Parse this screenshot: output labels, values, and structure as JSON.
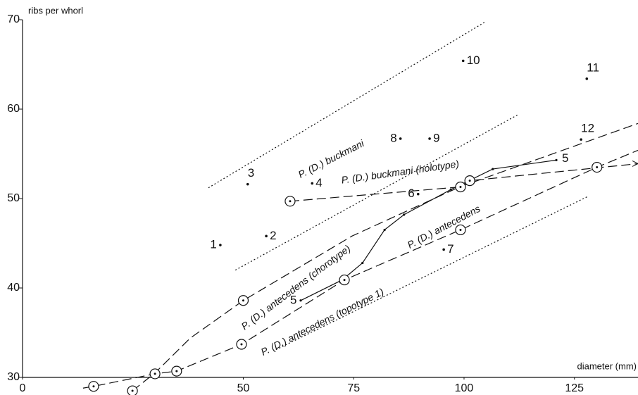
{
  "chart_data": {
    "type": "scatter",
    "xlabel": "diameter (mm)",
    "ylabel": "ribs per whorl",
    "xlim": [
      0,
      139.4
    ],
    "ylim": [
      30,
      70
    ],
    "xticks": [
      0,
      50,
      75,
      100,
      125
    ],
    "yticks": [
      30,
      40,
      50,
      60,
      70
    ],
    "color": "#111111",
    "points": {
      "labels": [
        "1",
        "2",
        "3",
        "4",
        "6",
        "7",
        "8",
        "9",
        "10",
        "11",
        "12"
      ],
      "x": [
        44.8,
        55.2,
        51.0,
        65.6,
        89.6,
        95.4,
        85.6,
        92.2,
        99.8,
        127.8,
        126.5
      ],
      "y": [
        44.8,
        45.8,
        51.6,
        51.7,
        50.5,
        44.3,
        56.7,
        56.7,
        65.4,
        63.4,
        56.6
      ]
    },
    "series": [
      {
        "name": "5",
        "style": "solid",
        "x": [
          63.0,
          72.4,
          77.0,
          82.0,
          86.4,
          97.0,
          106.5,
          120.9
        ],
        "y": [
          38.6,
          40.9,
          42.8,
          46.5,
          48.2,
          51.0,
          53.3,
          54.3
        ]
      },
      {
        "style": "dashed",
        "x": [
          24.9,
          30.0,
          38.0,
          50.0,
          74.6,
          99.0,
          139.4
        ],
        "y": [
          28.5,
          30.5,
          34.4,
          38.6,
          45.8,
          51.3,
          58.4
        ]
      },
      {
        "style": "dashed",
        "x": [
          13.7,
          16.1,
          30.0,
          34.9,
          49.6,
          72.9,
          99.2,
          130.1,
          139.4
        ],
        "y": [
          28.8,
          29.0,
          30.4,
          30.7,
          33.7,
          40.9,
          46.5,
          53.5,
          55.4
        ]
      },
      {
        "style": "dashed",
        "x": [
          60.6,
          99.2,
          101.3,
          139.4
        ],
        "y": [
          49.7,
          51.3,
          52.0,
          53.9
        ]
      },
      {
        "style": "dotted",
        "x": [
          42.1,
          104.6
        ],
        "y": [
          51.2,
          69.7
        ]
      },
      {
        "style": "dotted",
        "x": [
          48.2,
          112.3
        ],
        "y": [
          42.0,
          59.4
        ]
      },
      {
        "style": "dotted",
        "x": [
          57.4,
          127.9
        ],
        "y": [
          33.1,
          50.2
        ]
      }
    ],
    "circles": {
      "x": [
        16.1,
        24.9,
        30.0,
        34.9,
        50.0,
        49.6,
        60.6,
        72.9,
        99.2,
        101.3,
        99.2,
        130.1
      ],
      "y": [
        29.0,
        28.5,
        30.4,
        30.7,
        38.6,
        33.7,
        49.7,
        40.9,
        51.3,
        52.0,
        46.5,
        53.5
      ]
    },
    "annotations": [
      "P. (D.) buckmani",
      "P. (D.) buckmani (holotype)",
      "P. (D.) antecedens (chorotype)",
      "P. (D.) antecedens",
      "P. (D.) antecedens (topotype 1)"
    ]
  }
}
